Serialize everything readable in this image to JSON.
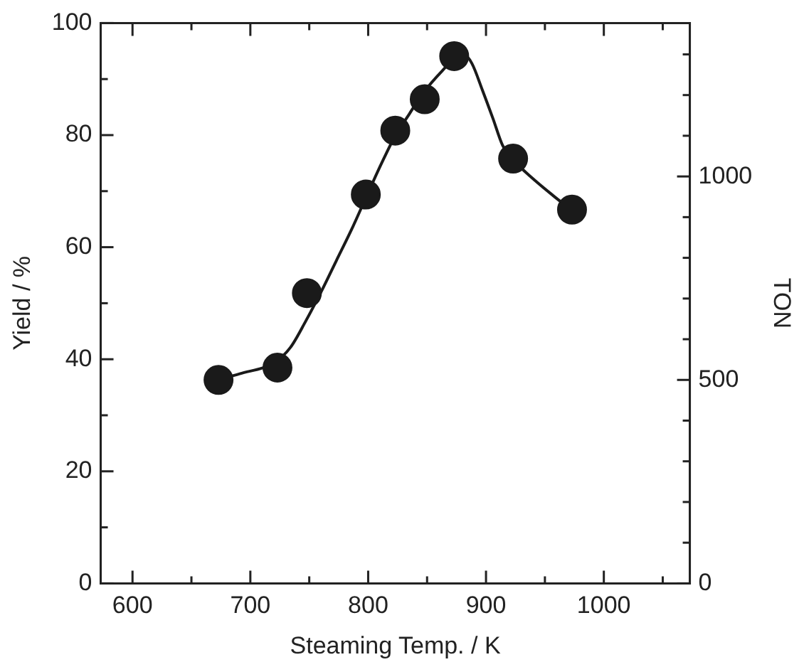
{
  "chart_data": {
    "type": "scatter",
    "xlabel": "Steaming Temp. / K",
    "ylabel": "Yield / %",
    "y2label": "TON",
    "xlim": [
      573,
      1073
    ],
    "xticks": [
      600,
      {
        "value": 650,
        "label": null
      },
      700,
      {
        "value": 750,
        "label": null
      },
      800,
      {
        "value": 850,
        "label": null
      },
      900,
      {
        "value": 950,
        "label": null
      },
      1000,
      {
        "value": 1050,
        "label": null
      }
    ],
    "ylim": [
      0,
      100
    ],
    "yticks": [
      0,
      {
        "value": 10,
        "label": null
      },
      20,
      {
        "value": 30,
        "label": null
      },
      40,
      {
        "value": 50,
        "label": null
      },
      60,
      {
        "value": 70,
        "label": null
      },
      80,
      {
        "value": 90,
        "label": null
      },
      100
    ],
    "y2lim": [
      0,
      1377
    ],
    "y2ticks": [
      0,
      {
        "value": 100,
        "label": null
      },
      {
        "value": 200,
        "label": null
      },
      {
        "value": 300,
        "label": null
      },
      {
        "value": 400,
        "label": null
      },
      500,
      {
        "value": 600,
        "label": null
      },
      {
        "value": 700,
        "label": null
      },
      {
        "value": 800,
        "label": null
      },
      {
        "value": 900,
        "label": null
      },
      1000,
      {
        "value": 1100,
        "label": null
      },
      {
        "value": 1200,
        "label": null
      },
      {
        "value": 1300,
        "label": null
      }
    ],
    "series": [
      {
        "marker": "circle",
        "color": "#1a1a1a",
        "x": [
          673,
          723,
          748,
          798,
          823,
          848,
          873,
          923,
          973
        ],
        "values": [
          36.3,
          38.5,
          51.8,
          69.4,
          80.8,
          86.4,
          94.1,
          75.8,
          66.7
        ]
      },
      {
        "type": "line",
        "marker": "none",
        "color": "#1a1a1a",
        "x": [
          672,
          691,
          721,
          734,
          747,
          760,
          773,
          786,
          798,
          811,
          822,
          835,
          847,
          863,
          876,
          882,
          888,
          897,
          906,
          914,
          923,
          940,
          957,
          972
        ],
        "values": [
          36.3,
          37.4,
          39.5,
          42.1,
          46.8,
          52.0,
          57.6,
          63.2,
          68.8,
          74.8,
          79.5,
          83.8,
          87.6,
          91.5,
          94.1,
          94.2,
          92.8,
          88.0,
          82.9,
          78.2,
          75.6,
          72.2,
          69.2,
          66.7
        ]
      }
    ]
  }
}
